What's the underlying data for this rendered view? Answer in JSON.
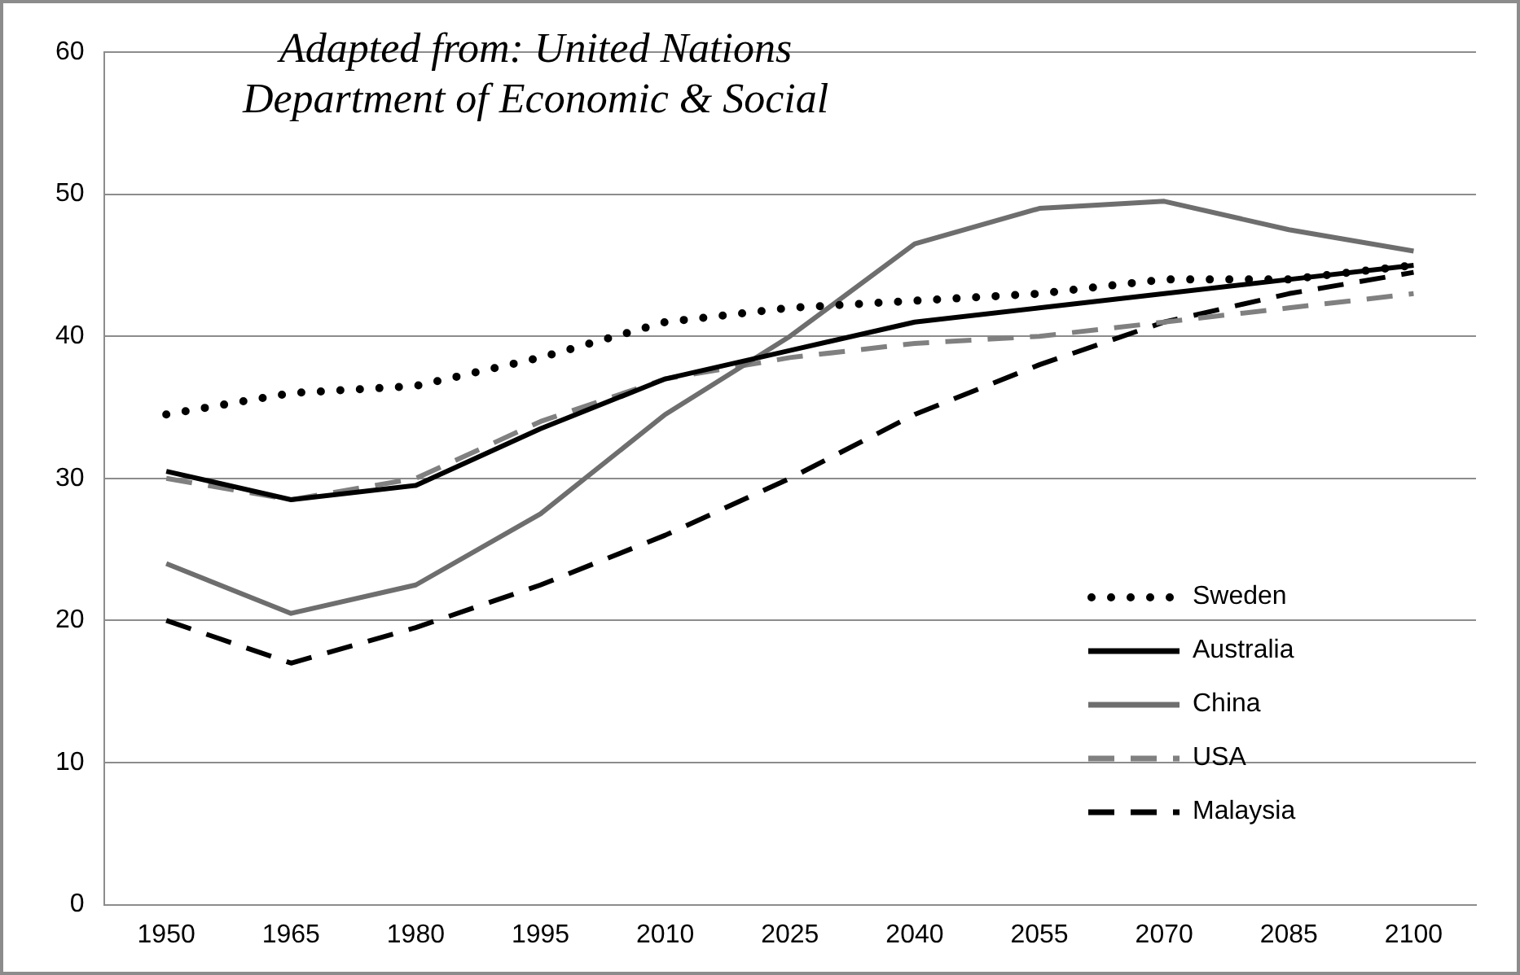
{
  "chart_data": {
    "type": "line",
    "annotations": [
      "Adapted from: United Nations Department of Economic & Social"
    ],
    "categories": [
      "1950",
      "1965",
      "1980",
      "1995",
      "2010",
      "2025",
      "2040",
      "2055",
      "2070",
      "2085",
      "2100"
    ],
    "series": [
      {
        "name": "Sweden",
        "color": "#000000",
        "line_style": "dotted",
        "values": [
          34.5,
          36,
          36.5,
          38.5,
          41,
          42,
          42.5,
          43,
          44,
          44,
          45
        ]
      },
      {
        "name": "Australia",
        "color": "#000000",
        "line_style": "solid",
        "values": [
          30.5,
          28.5,
          29.5,
          33.5,
          37,
          39,
          41,
          42,
          43,
          44,
          45
        ]
      },
      {
        "name": "China",
        "color": "#6e6e6e",
        "line_style": "solid",
        "values": [
          24,
          20.5,
          22.5,
          27.5,
          34.5,
          40,
          46.5,
          49,
          49.5,
          47.5,
          46
        ]
      },
      {
        "name": "USA",
        "color": "#808080",
        "line_style": "dashed",
        "values": [
          30,
          28.5,
          30,
          34,
          37,
          38.5,
          39.5,
          40,
          41,
          42,
          43
        ]
      },
      {
        "name": "Malaysia",
        "color": "#000000",
        "line_style": "dashed",
        "values": [
          20,
          17,
          19.5,
          22.5,
          26,
          30,
          34.5,
          38,
          41,
          43,
          44.5
        ]
      }
    ],
    "ylim": [
      0,
      60
    ],
    "yticks": [
      0,
      10,
      20,
      30,
      40,
      50,
      60
    ],
    "grid": "y",
    "legend": "bottom right",
    "marker": "none"
  }
}
